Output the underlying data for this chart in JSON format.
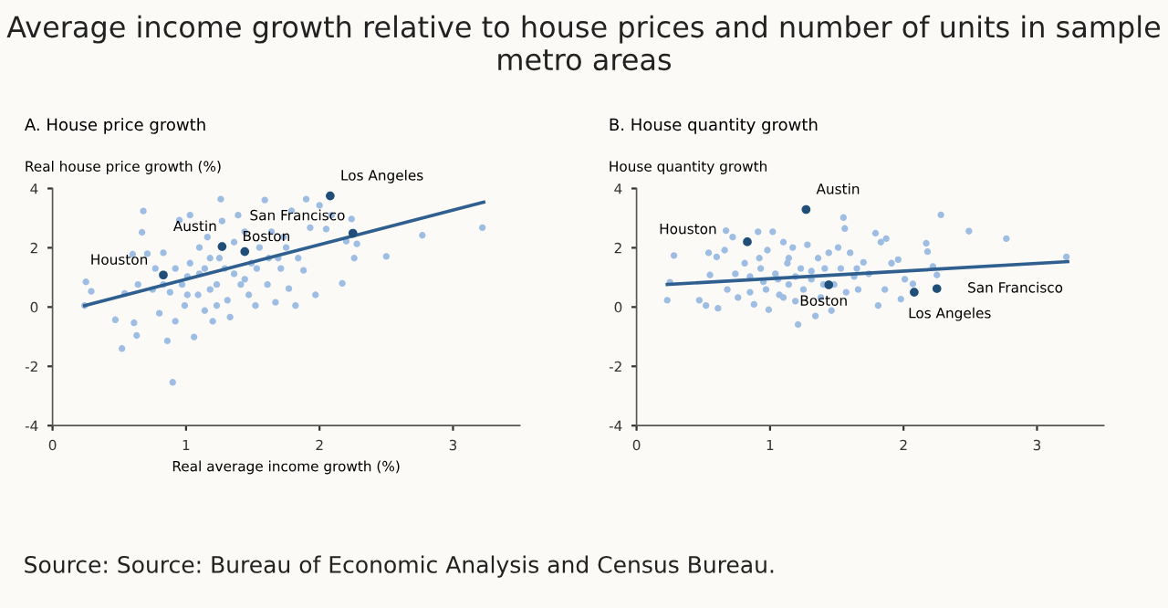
{
  "chart_data": [
    {
      "type": "scatter",
      "title": "Average income growth relative to house prices and number of units in sample metro areas",
      "subtitle": "A. House price growth",
      "ylabel": "Real house price growth (%)",
      "xlabel": "Real average income growth (%)",
      "xlim": [
        0,
        3.5
      ],
      "xticks": [
        0,
        1,
        2,
        3
      ],
      "ylim": [
        -4,
        4
      ],
      "yticks": [
        -4,
        -2,
        0,
        2,
        4
      ],
      "grid": false,
      "series": [
        {
          "type": "scatter",
          "color": "#9dbde3",
          "x": [
            0.24,
            0.25,
            0.29,
            0.47,
            0.52,
            0.54,
            0.6,
            0.61,
            0.63,
            0.64,
            0.67,
            0.68,
            0.71,
            0.75,
            0.77,
            0.8,
            0.83,
            0.86,
            0.88,
            0.9,
            0.92,
            0.95,
            0.97,
            0.99,
            1.03,
            1.03,
            1.06,
            1.09,
            1.1,
            1.14,
            1.16,
            1.18,
            1.2,
            1.23,
            1.26,
            1.27,
            1.29,
            1.31,
            1.33,
            1.36,
            1.39,
            1.41,
            1.44,
            1.47,
            1.49,
            1.52,
            1.55,
            1.59,
            1.61,
            1.64,
            1.67,
            1.69,
            1.73,
            1.77,
            1.79,
            1.82,
            1.84,
            1.88,
            1.9,
            1.93,
            1.97,
            2.0,
            2.05,
            2.09,
            2.17,
            2.2,
            2.24,
            2.26,
            2.28,
            2.5,
            2.77,
            3.22,
            0.92,
            1.01,
            1.1,
            1.18,
            1.25,
            1.36,
            1.53,
            1.62,
            1.01,
            0.83,
            1.14,
            1.23,
            1.44,
            1.71,
            1.75
          ],
          "values": [
            0.05,
            0.85,
            0.53,
            -0.43,
            -1.4,
            0.46,
            1.78,
            -0.53,
            -0.96,
            0.76,
            2.52,
            3.24,
            1.8,
            0.59,
            1.3,
            -0.21,
            1.83,
            -1.14,
            0.5,
            -2.54,
            -0.48,
            2.93,
            0.76,
            0.05,
            3.1,
            1.48,
            -1.01,
            0.41,
            1.12,
            -0.12,
            2.36,
            1.65,
            -0.48,
            0.76,
            3.64,
            2.9,
            1.3,
            0.23,
            -0.34,
            2.19,
            3.1,
            0.76,
            2.54,
            0.41,
            1.48,
            0.05,
            2.01,
            3.61,
            0.76,
            2.54,
            0.16,
            1.65,
            2.36,
            0.62,
            3.25,
            0.05,
            1.65,
            1.24,
            3.64,
            2.68,
            0.41,
            3.43,
            2.63,
            3.1,
            0.8,
            2.22,
            2.97,
            1.65,
            2.13,
            1.71,
            2.42,
            2.68,
            1.3,
            1.03,
            2.01,
            0.59,
            1.65,
            1.12,
            1.3,
            1.65,
            0.41,
            0.76,
            1.3,
            0.05,
            0.94,
            1.3,
            2.01
          ]
        },
        {
          "type": "scatter",
          "color": "#1f4e79",
          "x": [
            0.83,
            1.27,
            1.44,
            2.25,
            2.08
          ],
          "values": [
            1.08,
            2.04,
            1.87,
            2.49,
            3.75
          ]
        },
        {
          "type": "line",
          "color": "#2f5f8f",
          "x": [
            0.24,
            3.23
          ],
          "values": [
            0.05,
            3.54
          ]
        }
      ],
      "annotations": [
        {
          "text": "Houston",
          "x": 0.83,
          "y": 1.08
        },
        {
          "text": "Austin",
          "x": 1.27,
          "y": 2.04
        },
        {
          "text": "Boston",
          "x": 1.44,
          "y": 1.87
        },
        {
          "text": "San Francisco",
          "x": 2.25,
          "y": 2.49
        },
        {
          "text": "Los Angeles",
          "x": 2.08,
          "y": 3.75
        },
        "Source: Source: Bureau of Economic Analysis and Census Bureau."
      ]
    },
    {
      "type": "scatter",
      "subtitle": "B. House quantity growth",
      "ylabel": "House quantity growth",
      "xlim": [
        0,
        3.5
      ],
      "xticks": [
        0,
        1,
        2,
        3
      ],
      "ylim": [
        -4,
        4
      ],
      "yticks": [
        -4,
        -2,
        0,
        2,
        4
      ],
      "grid": false,
      "series": [
        {
          "type": "scatter",
          "color": "#9dbde3",
          "x": [
            0.23,
            0.25,
            0.28,
            0.47,
            0.52,
            0.54,
            0.55,
            0.6,
            0.61,
            0.66,
            0.67,
            0.68,
            0.72,
            0.74,
            0.76,
            0.81,
            0.85,
            0.88,
            0.91,
            0.92,
            0.95,
            0.98,
            0.99,
            1.02,
            1.04,
            1.07,
            1.1,
            1.13,
            1.14,
            1.17,
            1.19,
            1.21,
            1.23,
            1.25,
            1.28,
            1.31,
            1.34,
            1.36,
            1.38,
            1.41,
            1.44,
            1.46,
            1.48,
            1.51,
            1.53,
            1.55,
            1.56,
            1.57,
            1.6,
            1.63,
            1.66,
            1.7,
            1.74,
            1.79,
            1.81,
            1.83,
            1.86,
            1.87,
            1.91,
            1.96,
            1.98,
            2.01,
            2.07,
            2.17,
            2.18,
            2.22,
            2.25,
            2.28,
            2.49,
            2.77,
            3.22,
            0.93,
            1.06,
            1.19,
            1.31,
            0.97,
            1.1,
            0.85,
            1.4,
            1.65,
            1.14
          ],
          "values": [
            0.23,
            0.84,
            1.74,
            0.23,
            0.05,
            1.83,
            1.08,
            1.69,
            -0.04,
            1.92,
            2.58,
            0.59,
            2.36,
            1.12,
            0.32,
            1.48,
            0.5,
            0.09,
            2.54,
            1.65,
            0.85,
            1.92,
            -0.09,
            2.54,
            1.12,
            0.41,
            2.19,
            1.48,
            0.76,
            2.01,
            0.2,
            -0.59,
            1.3,
            0.59,
            2.1,
            0.94,
            -0.3,
            1.65,
            0.32,
            1.3,
            1.83,
            -0.12,
            0.76,
            2.01,
            1.3,
            3.02,
            2.65,
            0.5,
            1.83,
            1.03,
            0.59,
            1.51,
            1.12,
            2.49,
            0.05,
            2.19,
            0.59,
            2.31,
            1.48,
            1.6,
            0.27,
            0.94,
            0.78,
            2.15,
            1.87,
            1.37,
            1.08,
            3.11,
            2.56,
            2.31,
            1.69,
            1.3,
            0.94,
            1.03,
            1.21,
            0.59,
            0.32,
            1.03,
            0.76,
            1.3,
            1.65
          ]
        },
        {
          "type": "scatter",
          "color": "#1f4e79",
          "x": [
            0.83,
            1.27,
            1.44,
            2.08,
            2.25
          ],
          "values": [
            2.2,
            3.29,
            0.75,
            0.5,
            0.62
          ]
        },
        {
          "type": "line",
          "color": "#2f5f8f",
          "x": [
            0.23,
            3.23
          ],
          "values": [
            0.76,
            1.53
          ]
        }
      ],
      "annotations": [
        {
          "text": "Houston",
          "x": 0.83,
          "y": 2.2
        },
        {
          "text": "Austin",
          "x": 1.27,
          "y": 3.29
        },
        {
          "text": "Boston",
          "x": 1.44,
          "y": 0.75
        },
        {
          "text": "Los Angeles",
          "x": 2.08,
          "y": 0.5
        },
        {
          "text": "San Francisco",
          "x": 2.25,
          "y": 0.62
        }
      ]
    }
  ]
}
